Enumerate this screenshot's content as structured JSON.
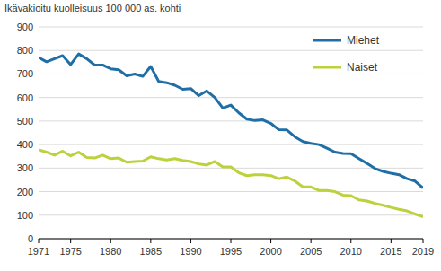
{
  "chart_data": {
    "type": "line",
    "y_label": "Ikävakioitu kuolleisuus 100 000 as. kohti",
    "x": [
      1971,
      1972,
      1973,
      1974,
      1975,
      1976,
      1977,
      1978,
      1979,
      1980,
      1981,
      1982,
      1983,
      1984,
      1985,
      1986,
      1987,
      1988,
      1989,
      1990,
      1991,
      1992,
      1993,
      1994,
      1995,
      1996,
      1997,
      1998,
      1999,
      2000,
      2001,
      2002,
      2003,
      2004,
      2005,
      2006,
      2007,
      2008,
      2009,
      2010,
      2011,
      2012,
      2013,
      2014,
      2015,
      2016,
      2017,
      2018,
      2019
    ],
    "series": [
      {
        "name": "Miehet",
        "color": "#1f6fa6",
        "values": [
          770,
          752,
          765,
          778,
          740,
          785,
          765,
          738,
          738,
          722,
          718,
          692,
          700,
          690,
          732,
          668,
          663,
          652,
          635,
          638,
          608,
          628,
          600,
          555,
          568,
          535,
          508,
          502,
          505,
          490,
          463,
          462,
          433,
          413,
          405,
          400,
          385,
          368,
          362,
          361,
          340,
          320,
          298,
          286,
          278,
          272,
          255,
          245,
          215
        ]
      },
      {
        "name": "Naiset",
        "color": "#bcd13c",
        "values": [
          378,
          368,
          355,
          372,
          352,
          368,
          345,
          343,
          355,
          340,
          343,
          325,
          328,
          330,
          348,
          340,
          335,
          340,
          333,
          328,
          318,
          313,
          328,
          305,
          305,
          280,
          268,
          272,
          272,
          268,
          255,
          262,
          245,
          220,
          220,
          205,
          205,
          200,
          185,
          183,
          165,
          160,
          150,
          142,
          133,
          125,
          118,
          105,
          93
        ]
      }
    ],
    "xlim": [
      1971,
      2019
    ],
    "ylim": [
      0,
      900
    ],
    "xticks": [
      1971,
      1975,
      1980,
      1985,
      1990,
      1995,
      2000,
      2005,
      2010,
      2015,
      2019
    ],
    "yticks": [
      0,
      100,
      200,
      300,
      400,
      500,
      600,
      700,
      800,
      900
    ],
    "grid": true,
    "legend": "upper right"
  }
}
